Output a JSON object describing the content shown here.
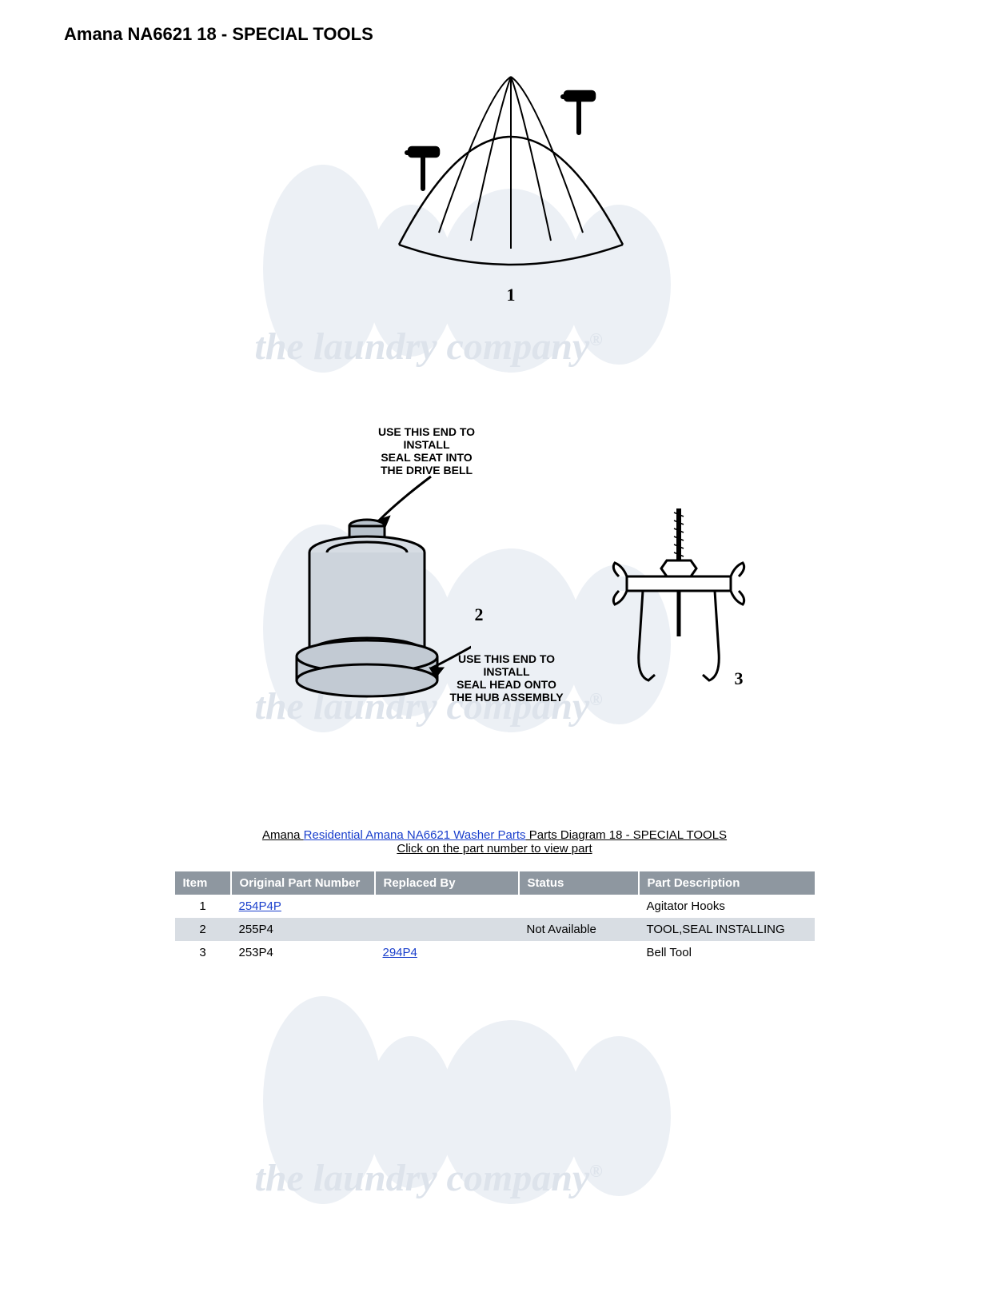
{
  "title": "Amana NA6621 18 - SPECIAL TOOLS",
  "watermark_text": "the laundry company",
  "watermark_color": "#dde3eb",
  "diagram": {
    "label_top": "USE THIS END TO\nINSTALL\nSEAL SEAT INTO\nTHE DRIVE BELL",
    "label_bottom": "USE THIS END TO\nINSTALL\nSEAL HEAD ONTO\nTHE HUB ASSEMBLY",
    "num1": "1",
    "num2": "2",
    "num3": "3"
  },
  "caption": {
    "prefix": "Amana ",
    "link_text": "Residential Amana NA6621 Washer Parts",
    "suffix": " Parts Diagram 18 - SPECIAL TOOLS",
    "sub": "Click on the part number to view part"
  },
  "table": {
    "columns": [
      "Item",
      "Original Part Number",
      "Replaced By",
      "Status",
      "Part Description"
    ],
    "col_widths": [
      "70px",
      "180px",
      "180px",
      "150px",
      "220px"
    ],
    "header_bg": "#8e97a0",
    "header_fg": "#ffffff",
    "row_even_bg": "#d8dde3",
    "link_color": "#1a3fcc",
    "rows": [
      {
        "item": "1",
        "orig": "254P4P",
        "orig_link": true,
        "replaced": "",
        "replaced_link": false,
        "status": "",
        "desc": "Agitator Hooks",
        "stripe": "odd"
      },
      {
        "item": "2",
        "orig": "255P4",
        "orig_link": false,
        "replaced": "",
        "replaced_link": false,
        "status": "Not Available",
        "desc": "TOOL,SEAL INSTALLING",
        "stripe": "even"
      },
      {
        "item": "3",
        "orig": "253P4",
        "orig_link": false,
        "replaced": "294P4",
        "replaced_link": true,
        "status": "",
        "desc": "Bell Tool",
        "stripe": "odd"
      }
    ]
  }
}
